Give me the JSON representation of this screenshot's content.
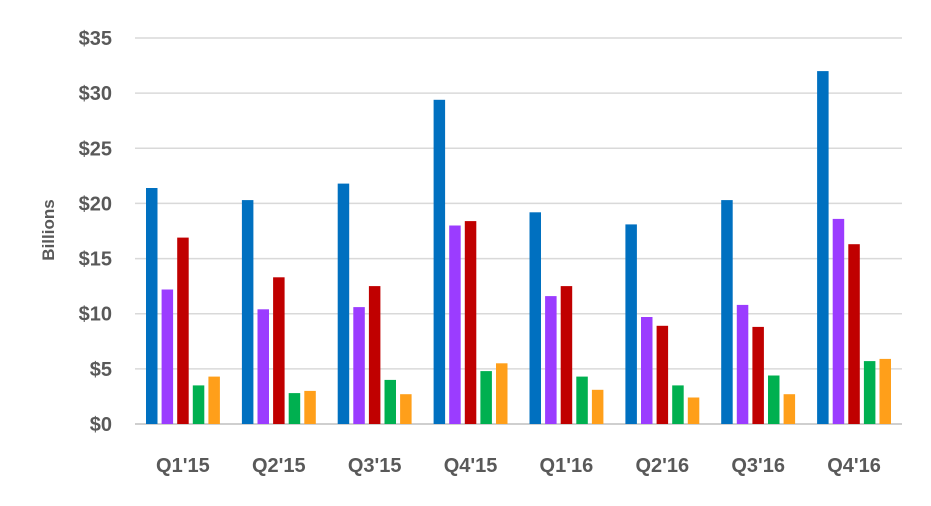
{
  "chart_data": {
    "type": "bar",
    "title": "",
    "xlabel": "",
    "ylabel": "Billions",
    "ylim": [
      0,
      35
    ],
    "yticks": [
      0,
      5,
      10,
      15,
      20,
      25,
      30,
      35
    ],
    "ytick_labels": [
      "$0",
      "$5",
      "$10",
      "$15",
      "$20",
      "$25",
      "$30",
      "$35"
    ],
    "grid": true,
    "legend": "none",
    "categories": [
      "Q1'15",
      "Q2'15",
      "Q3'15",
      "Q4'15",
      "Q1'16",
      "Q2'16",
      "Q3'16",
      "Q4'16"
    ],
    "series": [
      {
        "color": "#0070c0",
        "values": [
          21.4,
          20.3,
          21.8,
          29.4,
          19.2,
          18.1,
          20.3,
          32.0
        ]
      },
      {
        "color": "#9b3cff",
        "values": [
          12.2,
          10.4,
          10.6,
          18.0,
          11.6,
          9.7,
          10.8,
          18.6
        ]
      },
      {
        "color": "#c00000",
        "values": [
          16.9,
          13.3,
          12.5,
          18.4,
          12.5,
          8.9,
          8.8,
          16.3
        ]
      },
      {
        "color": "#00b050",
        "values": [
          3.5,
          2.8,
          4.0,
          4.8,
          4.3,
          3.5,
          4.4,
          5.7
        ]
      },
      {
        "color": "#ff9f1a",
        "values": [
          4.3,
          3.0,
          2.7,
          5.5,
          3.1,
          2.4,
          2.7,
          5.9
        ]
      }
    ]
  }
}
